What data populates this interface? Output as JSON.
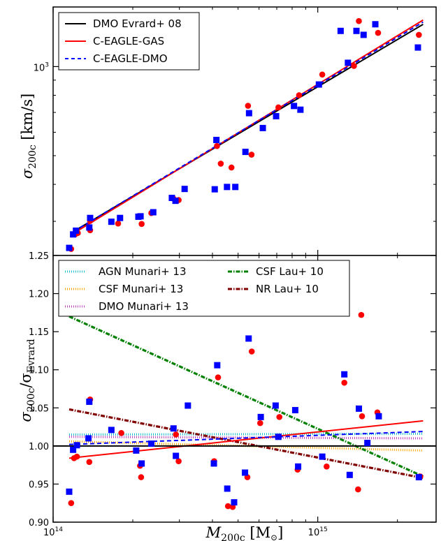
{
  "chart_data": [
    {
      "type": "scatter",
      "panel": "top",
      "xscale": "log",
      "yscale": "log",
      "xlim": [
        100000000000000,
        2800000000000000
      ],
      "ylim": [
        230,
        1590
      ],
      "ylabel_main": "σ",
      "ylabel_sub": "200c",
      "ylabel_unit": " [km/s]",
      "yticks": [
        {
          "value": 1000,
          "base": "10",
          "exp": "3"
        }
      ],
      "legend": {
        "position": "top-left",
        "entries": [
          {
            "label": "DMO Evrard+ 08",
            "color": "#000000",
            "style": "solid"
          },
          {
            "label": "C-EAGLE-GAS",
            "color": "#ff0000",
            "style": "solid"
          },
          {
            "label": "C-EAGLE-DMO",
            "color": "#0000ff",
            "style": "dashed"
          }
        ]
      },
      "lines": [
        {
          "name": "DMO Evrard+ 08",
          "color": "#000000",
          "style": "solid",
          "x": [
            120000000000000,
            2500000000000000
          ],
          "y": [
            278,
            1389
          ]
        },
        {
          "name": "C-EAGLE-GAS",
          "color": "#ff0000",
          "style": "solid",
          "x": [
            120000000000000,
            2500000000000000
          ],
          "y": [
            274,
            1436
          ]
        },
        {
          "name": "C-EAGLE-DMO",
          "color": "#0000ff",
          "style": "dashed",
          "x": [
            120000000000000,
            2500000000000000
          ],
          "y": [
            278,
            1414
          ]
        }
      ],
      "series": [
        {
          "name": "C-EAGLE-GAS",
          "marker": "circle",
          "color": "#ff0000",
          "x": [
            117000000000000,
            121000000000000,
            124000000000000,
            138000000000000,
            138000000000000,
            176000000000000,
            216000000000000,
            235000000000000,
            285000000000000,
            298000000000000,
            416000000000000,
            430000000000000,
            472000000000000,
            545000000000000,
            562000000000000,
            710000000000000,
            850000000000000,
            1040000000000000,
            1370000000000000,
            1430000000000000,
            1690000000000000,
            2410000000000000
          ],
          "y": [
            242,
            271,
            274,
            280,
            301,
            295,
            294,
            320,
            358,
            354,
            539,
            470,
            456,
            737,
            504,
            728,
            800,
            940,
            1005,
            1425,
            1300,
            1280
          ]
        },
        {
          "name": "C-EAGLE-DMO",
          "marker": "square",
          "color": "#0000ff",
          "x": [
            115000000000000,
            119000000000000,
            122000000000000,
            137000000000000,
            138000000000000,
            166000000000000,
            179000000000000,
            210000000000000,
            214000000000000,
            239000000000000,
            281000000000000,
            290000000000000,
            314000000000000,
            408000000000000,
            414000000000000,
            454000000000000,
            488000000000000,
            533000000000000,
            550000000000000,
            620000000000000,
            696000000000000,
            813000000000000,
            860000000000000,
            1010000000000000,
            1220000000000000,
            1300000000000000,
            1400000000000000,
            1490000000000000,
            1650000000000000,
            2390000000000000
          ],
          "y": [
            244,
            271,
            279,
            286,
            308,
            299,
            308,
            311,
            312,
            322,
            360,
            352,
            386,
            385,
            565,
            392,
            392,
            515,
            696,
            620,
            680,
            736,
            715,
            870,
            1320,
            1030,
            1320,
            1280,
            1390,
            1160
          ]
        }
      ]
    },
    {
      "type": "scatter",
      "panel": "bottom",
      "xscale": "log",
      "xlim": [
        100000000000000,
        2800000000000000
      ],
      "ylim": [
        0.9,
        1.25
      ],
      "xlabel_main": "M",
      "xlabel_sub": "200c",
      "xlabel_unit": " [M",
      "xlabel_unit_end": "]",
      "ylabel_main": "σ",
      "ylabel_sub1": "200c",
      "ylabel_sep": "/σ",
      "ylabel_sub2": "Evrard",
      "xticks": [
        {
          "value": 100000000000000,
          "base": "10",
          "exp": "14"
        },
        {
          "value": 1000000000000000,
          "base": "10",
          "exp": "15"
        }
      ],
      "yticks": [
        "0.90",
        "0.95",
        "1.00",
        "1.05",
        "1.10",
        "1.15",
        "1.20",
        "1.25"
      ],
      "legend": {
        "position": "top-left",
        "entries": [
          {
            "label": "AGN Munari+ 13",
            "color": "#17becf",
            "style": "dotted"
          },
          {
            "label": "CSF Munari+ 13",
            "color": "#ffa500",
            "style": "dotted"
          },
          {
            "label": "DMO Munari+ 13",
            "color": "#bf40bf",
            "style": "dotted"
          },
          {
            "label": "CSF Lau+ 10",
            "color": "#008000",
            "style": "dashdot"
          },
          {
            "label": "NR Lau+ 10",
            "color": "#800000",
            "style": "dashdot"
          }
        ]
      },
      "lines": [
        {
          "name": "AGN Munari+ 13",
          "color": "#17becf",
          "style": "dotted",
          "x": [
            115000000000000,
            2500000000000000
          ],
          "y": [
            1.015,
            1.016
          ]
        },
        {
          "name": "CSF Munari+ 13",
          "color": "#ffa500",
          "style": "dotted",
          "x": [
            115000000000000,
            2500000000000000
          ],
          "y": [
            1.006,
            0.994
          ]
        },
        {
          "name": "DMO Munari+ 13",
          "color": "#bf40bf",
          "style": "dotted",
          "x": [
            115000000000000,
            2500000000000000
          ],
          "y": [
            1.012,
            1.01
          ]
        },
        {
          "name": "CSF Lau+ 10",
          "color": "#008000",
          "style": "dashdot",
          "x": [
            115000000000000,
            2500000000000000
          ],
          "y": [
            1.17,
            0.96
          ]
        },
        {
          "name": "NR Lau+ 10",
          "color": "#800000",
          "style": "dashdot",
          "x": [
            115000000000000,
            2500000000000000
          ],
          "y": [
            1.048,
            0.958
          ]
        },
        {
          "name": "C-EAGLE-GAS",
          "color": "#ff0000",
          "style": "solid",
          "x": [
            115000000000000,
            2500000000000000
          ],
          "y": [
            0.984,
            1.033
          ]
        },
        {
          "name": "C-EAGLE-DMO",
          "color": "#0000ff",
          "style": "dashed",
          "x": [
            115000000000000,
            2500000000000000
          ],
          "y": [
            1.002,
            1.019
          ]
        },
        {
          "name": "reference",
          "color": "#000000",
          "style": "solid",
          "x": [
            100000000000000,
            2800000000000000
          ],
          "y": [
            1.0,
            1.0
          ]
        }
      ],
      "series": [
        {
          "name": "C-EAGLE-GAS",
          "marker": "circle",
          "color": "#ff0000",
          "x": [
            117000000000000,
            120000000000000,
            123000000000000,
            137000000000000,
            138000000000000,
            181000000000000,
            213000000000000,
            215000000000000,
            291000000000000,
            298000000000000,
            406000000000000,
            420000000000000,
            458000000000000,
            477000000000000,
            542000000000000,
            563000000000000,
            606000000000000,
            716000000000000,
            839000000000000,
            1080000000000000,
            1260000000000000,
            1420000000000000,
            1460000000000000,
            1470000000000000,
            1680000000000000,
            2440000000000000
          ],
          "y": [
            0.925,
            0.984,
            0.986,
            0.979,
            1.061,
            1.017,
            0.974,
            0.959,
            1.015,
            0.98,
            0.98,
            1.09,
            0.921,
            0.92,
            0.959,
            1.124,
            1.03,
            1.038,
            0.969,
            0.973,
            1.083,
            0.943,
            1.172,
            1.039,
            1.044,
            0.96
          ]
        },
        {
          "name": "C-EAGLE-DMO",
          "marker": "square",
          "color": "#0000ff",
          "x": [
            115000000000000,
            119000000000000,
            123000000000000,
            136000000000000,
            137000000000000,
            166000000000000,
            206000000000000,
            216000000000000,
            235000000000000,
            285000000000000,
            291000000000000,
            323000000000000,
            405000000000000,
            417000000000000,
            455000000000000,
            483000000000000,
            531000000000000,
            548000000000000,
            609000000000000,
            693000000000000,
            710000000000000,
            822000000000000,
            843000000000000,
            1040000000000000,
            1260000000000000,
            1320000000000000,
            1430000000000000,
            1540000000000000,
            1700000000000000,
            2410000000000000
          ],
          "y": [
            0.94,
            0.995,
            1.001,
            1.01,
            1.058,
            1.021,
            0.994,
            0.977,
            1.003,
            1.023,
            0.987,
            1.053,
            0.977,
            1.106,
            0.944,
            0.926,
            0.965,
            1.141,
            1.038,
            1.053,
            1.012,
            1.047,
            0.973,
            0.986,
            1.094,
            0.962,
            1.049,
            1.004,
            1.039,
            0.959
          ]
        }
      ]
    }
  ]
}
